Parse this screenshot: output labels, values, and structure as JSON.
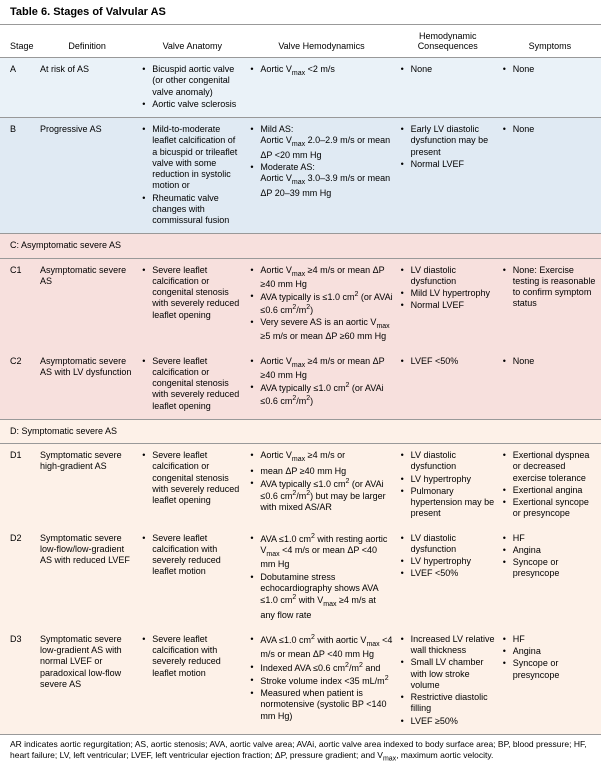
{
  "title": "Table 6.   Stages of Valvular AS",
  "columns": [
    "Stage",
    "Definition",
    "Valve Anatomy",
    "Valve Hemodynamics",
    "Hemodynamic Consequences",
    "Symptoms"
  ],
  "colWidths": [
    "6%",
    "17%",
    "18%",
    "25%",
    "17%",
    "17%"
  ],
  "colors": {
    "bg_a": "#eaf2f8",
    "bg_b": "#e0eaf3",
    "bg_c": "#f7e0dd",
    "bg_d": "#fdf1e8",
    "border": "#999999",
    "text": "#000000"
  },
  "rows": [
    {
      "bg": "bg-a",
      "sep": true,
      "stage": "A",
      "definition": "At risk of AS",
      "anatomy": [
        "Bicuspid aortic valve (or other congenital valve anomaly)",
        "Aortic valve sclerosis"
      ],
      "hemo": [
        "Aortic V<sub>max</sub> <2 m/s"
      ],
      "conseq": [
        "None"
      ],
      "symptoms": [
        "None"
      ]
    },
    {
      "bg": "bg-b",
      "sep": true,
      "stage": "B",
      "definition": "Progressive AS",
      "anatomy": [
        "Mild-to-moderate leaflet calcification of a bicuspid or trileaflet valve with some reduction in systolic motion or",
        "Rheumatic valve changes with commissural fusion"
      ],
      "hemo": [
        "Mild AS:<br>Aortic V<sub>max</sub> 2.0–2.9 m/s or mean ΔP <20 mm Hg",
        "Moderate AS:<br>Aortic V<sub>max</sub> 3.0–3.9 m/s or mean ΔP 20–39 mm Hg"
      ],
      "conseq": [
        "Early LV diastolic dysfunction may be present",
        "Normal LVEF"
      ],
      "symptoms": [
        "None"
      ]
    },
    {
      "section": "C: Asymptomatic severe AS",
      "bg": "bg-c"
    },
    {
      "bg": "bg-c",
      "stage": "C1",
      "definition": "Asymptomatic severe AS",
      "anatomy": [
        "Severe leaflet calcification or congenital stenosis with severely reduced leaflet opening"
      ],
      "hemo": [
        "Aortic V<sub>max</sub> ≥4 m/s or mean ΔP ≥40 mm Hg",
        "AVA typically is ≤1.0 cm<sup>2</sup> (or AVAi ≤0.6 cm<sup>2</sup>/m<sup>2</sup>)",
        "Very severe AS is an aortic V<sub>max</sub> ≥5 m/s or mean ΔP ≥60 mm Hg"
      ],
      "conseq": [
        "LV diastolic dysfunction",
        "Mild LV hypertrophy",
        "Normal LVEF"
      ],
      "symptoms": [
        "None: Exercise testing is reasonable to confirm symptom status"
      ]
    },
    {
      "bg": "bg-c",
      "stage": "C2",
      "definition": "Asymptomatic severe AS with LV dysfunction",
      "anatomy": [
        "Severe leaflet calcification or congenital stenosis with severely reduced leaflet opening"
      ],
      "hemo": [
        "Aortic V<sub>max</sub> ≥4 m/s or mean ΔP ≥40 mm Hg",
        "AVA typically ≤1.0 cm<sup>2</sup> (or AVAi ≤0.6 cm<sup>2</sup>/m<sup>2</sup>)"
      ],
      "conseq": [
        "LVEF <50%"
      ],
      "symptoms": [
        "None"
      ]
    },
    {
      "section": "D: Symptomatic severe AS",
      "bg": "bg-d"
    },
    {
      "bg": "bg-d",
      "stage": "D1",
      "definition": "Symptomatic severe high-gradient AS",
      "anatomy": [
        "Severe leaflet calcification or congenital stenosis with severely reduced leaflet opening"
      ],
      "hemo": [
        "Aortic V<sub>max</sub> ≥4 m/s or",
        "mean ΔP ≥40 mm Hg",
        "AVA typically ≤1.0 cm<sup>2</sup> (or AVAi ≤0.6 cm<sup>2</sup>/m<sup>2</sup>) but may be larger with mixed AS/AR"
      ],
      "conseq": [
        "LV diastolic dysfunction",
        "LV hypertrophy",
        "Pulmonary hypertension may be present"
      ],
      "symptoms": [
        "Exertional dyspnea or decreased exercise tolerance",
        "Exertional angina",
        "Exertional syncope or presyncope"
      ]
    },
    {
      "bg": "bg-d",
      "stage": "D2",
      "definition": "Symptomatic severe low-flow/low-gradient AS with reduced LVEF",
      "anatomy": [
        "Severe leaflet calcification with severely reduced leaflet motion"
      ],
      "hemo": [
        "AVA ≤1.0 cm<sup>2</sup> with resting aortic V<sub>max</sub> <4 m/s or mean ΔP <40 mm Hg",
        "Dobutamine stress echocardiography shows AVA ≤1.0 cm<sup>2</sup> with V<sub>max</sub> ≥4 m/s at any flow rate"
      ],
      "conseq": [
        "LV diastolic dysfunction",
        "LV hypertrophy",
        "LVEF <50%"
      ],
      "symptoms": [
        "HF",
        "Angina",
        "Syncope or presyncope"
      ]
    },
    {
      "bg": "bg-d",
      "stage": "D3",
      "definition": "Symptomatic severe low-gradient AS with normal LVEF or paradoxical low-flow severe AS",
      "anatomy": [
        "Severe leaflet calcification with severely reduced leaflet motion"
      ],
      "hemo": [
        "AVA ≤1.0 cm<sup>2</sup> with aortic V<sub>max</sub> <4 m/s or mean ΔP <40 mm Hg",
        "Indexed AVA ≤0.6 cm<sup>2</sup>/m<sup>2</sup> and",
        "Stroke volume index <35 mL/m<sup>2</sup>",
        "Measured when patient is normotensive (systolic BP <140 mm Hg)"
      ],
      "conseq": [
        "Increased LV relative wall thickness",
        "Small LV chamber with low stroke volume",
        "Restrictive diastolic filling",
        "LVEF ≥50%"
      ],
      "symptoms": [
        "HF",
        "Angina",
        "Syncope or presyncope"
      ]
    }
  ],
  "footnote": "AR indicates aortic regurgitation; AS, aortic stenosis; AVA, aortic valve area; AVAi, aortic valve area indexed to body surface area; BP, blood pressure; HF, heart failure; LV, left ventricular; LVEF, left ventricular ejection fraction; ΔP, pressure gradient; and V<sub>max</sub>, maximum aortic velocity."
}
